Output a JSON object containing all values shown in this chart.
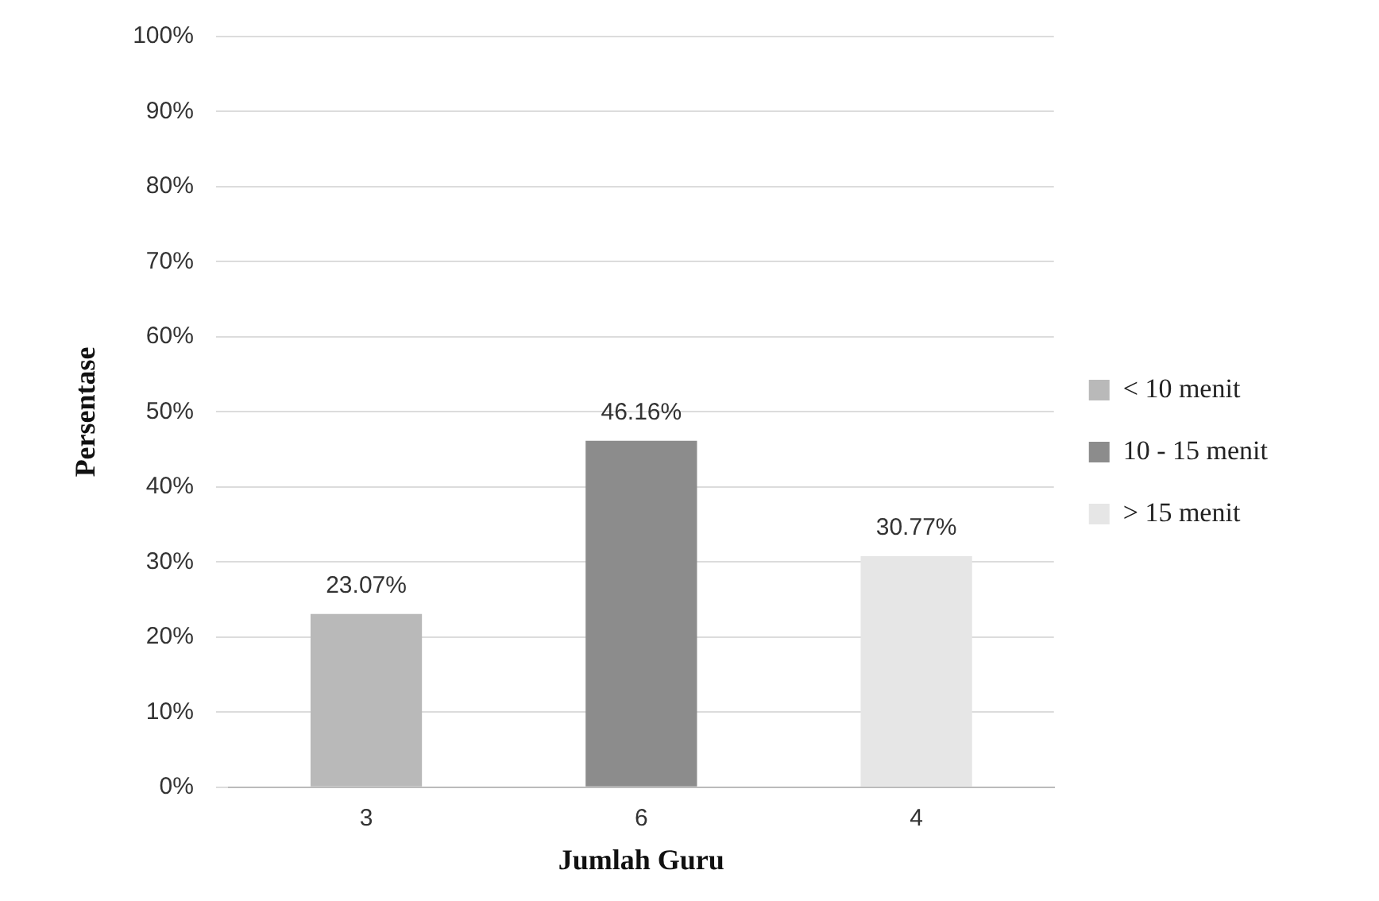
{
  "chart_data": {
    "type": "bar",
    "xlabel": "Jumlah Guru",
    "ylabel": "Persentase",
    "categories": [
      "3",
      "6",
      "4"
    ],
    "series": [
      {
        "name": "< 10 menit",
        "color": "#b9b9b9",
        "values": [
          23.07,
          null,
          null
        ],
        "value_labels": [
          "23.07%",
          null,
          null
        ]
      },
      {
        "name": "10 - 15 menit",
        "color": "#8c8c8c",
        "values": [
          null,
          46.16,
          null
        ],
        "value_labels": [
          null,
          "46.16%",
          null
        ]
      },
      {
        "name": "> 15 menit",
        "color": "#e6e6e6",
        "values": [
          null,
          null,
          30.77
        ],
        "value_labels": [
          null,
          null,
          "30.77%"
        ]
      }
    ],
    "ylim": [
      0,
      100
    ],
    "yticks": [
      {
        "value": 0,
        "label": "0%"
      },
      {
        "value": 10,
        "label": "10%"
      },
      {
        "value": 20,
        "label": "20%"
      },
      {
        "value": 30,
        "label": "30%"
      },
      {
        "value": 40,
        "label": "40%"
      },
      {
        "value": 50,
        "label": "50%"
      },
      {
        "value": 60,
        "label": "60%"
      },
      {
        "value": 70,
        "label": "70%"
      },
      {
        "value": 80,
        "label": "80%"
      },
      {
        "value": 90,
        "label": "90%"
      },
      {
        "value": 100,
        "label": "100%"
      }
    ],
    "grid": "y",
    "legend": "right"
  }
}
